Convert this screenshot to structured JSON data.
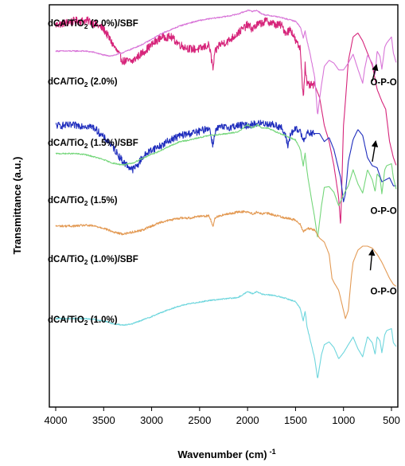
{
  "chart_data": {
    "type": "line",
    "title": "",
    "xlabel": "Wavenumber (cm)",
    "xlabel_superscript": "-1",
    "ylabel": "Transmittance (a.u.)",
    "x_reversed": true,
    "xlim": [
      4000,
      450
    ],
    "y_ticks_shown": false,
    "grid": false,
    "legend": "labels-above-curves",
    "xticks": [
      4000,
      3500,
      3000,
      2500,
      2000,
      1500,
      1000,
      500
    ],
    "xtick_labels": [
      "4000",
      "3500",
      "3000",
      "2500",
      "2000",
      "1500",
      "1000",
      "500"
    ],
    "series": [
      {
        "name_base": "dCA/TiO",
        "name_sub": "2",
        "name_rest": " (2.0%)/SBF",
        "color": "#d6247a",
        "offset": 0,
        "noise": 2.0,
        "x": [
          4000,
          3800,
          3650,
          3500,
          3400,
          3300,
          3200,
          3100,
          3000,
          2900,
          2800,
          2700,
          2600,
          2500,
          2400,
          2360,
          2340,
          2300,
          2200,
          2100,
          2000,
          1950,
          1900,
          1800,
          1700,
          1650,
          1600,
          1550,
          1500,
          1450,
          1420,
          1400,
          1380,
          1300,
          1250,
          1200,
          1150,
          1100,
          1050,
          1030,
          1000,
          980,
          950,
          900,
          850,
          800,
          750,
          700,
          650,
          600,
          560,
          520,
          480,
          450
        ],
        "y": [
          95,
          96,
          96,
          94,
          90,
          86,
          86,
          88,
          90,
          92,
          92,
          90,
          89,
          89,
          90,
          84,
          88,
          90,
          91,
          93,
          95,
          94,
          95,
          96,
          95,
          95,
          93,
          94,
          91,
          89,
          77,
          85,
          80,
          80,
          77,
          70,
          66,
          60,
          52,
          45,
          70,
          76,
          86,
          92,
          93,
          91,
          88,
          85,
          79,
          76,
          74,
          66,
          62,
          60
        ]
      },
      {
        "name_base": "dCA/TiO",
        "name_sub": "2",
        "name_rest": " (2.0%)",
        "color": "#d875d8",
        "offset": 0,
        "noise": 0.3,
        "x": [
          4000,
          3800,
          3700,
          3600,
          3500,
          3450,
          3400,
          3300,
          3200,
          3100,
          3000,
          2900,
          2800,
          2700,
          2600,
          2500,
          2400,
          2200,
          2100,
          2000,
          1950,
          1900,
          1850,
          1800,
          1700,
          1600,
          1500,
          1450,
          1420,
          1400,
          1380,
          1350,
          1300,
          1270,
          1250,
          1230,
          1200,
          1150,
          1100,
          1050,
          1000,
          950,
          900,
          850,
          800,
          780,
          750,
          700,
          670,
          650,
          620,
          600,
          570,
          550,
          500,
          480,
          450
        ],
        "y": [
          88.5,
          88.5,
          88.5,
          88.2,
          87.5,
          87.3,
          87.4,
          88.1,
          89.1,
          90.1,
          91.4,
          92.8,
          93.8,
          94.8,
          95.5,
          96.1,
          96.5,
          97.2,
          97.7,
          98.6,
          98.4,
          98.6,
          97.7,
          97.4,
          97.1,
          96.5,
          95.9,
          94.5,
          91.8,
          93.5,
          91.0,
          88.0,
          82.0,
          72.5,
          76.5,
          80.0,
          84.7,
          86.2,
          85.5,
          83.8,
          83.8,
          85.5,
          87.7,
          84.0,
          80.5,
          84.0,
          87.5,
          85.5,
          82.5,
          88.5,
          87.2,
          84.0,
          89.5,
          90.5,
          92.0,
          88.0,
          85.5
        ]
      },
      {
        "name_base": "dCA/TiO",
        "name_sub": "2",
        "name_rest": " (1.5%)/SBF",
        "color": "#1f2dbd",
        "offset": 0,
        "noise": 1.8,
        "x": [
          4000,
          3800,
          3700,
          3600,
          3500,
          3450,
          3400,
          3300,
          3250,
          3200,
          3150,
          3100,
          3000,
          2900,
          2800,
          2700,
          2600,
          2500,
          2400,
          2360,
          2340,
          2300,
          2200,
          2100,
          2000,
          1900,
          1800,
          1700,
          1650,
          1600,
          1580,
          1550,
          1500,
          1450,
          1420,
          1380,
          1300,
          1250,
          1200,
          1150,
          1100,
          1050,
          1030,
          1000,
          980,
          950,
          900,
          850,
          800,
          750,
          700,
          650,
          600,
          560,
          520,
          480,
          450
        ],
        "y": [
          70,
          70,
          70,
          69.5,
          67,
          66,
          64.5,
          61,
          60,
          59,
          60,
          62,
          64,
          65,
          66.5,
          67.5,
          68,
          68.5,
          69.5,
          65,
          68.5,
          69.5,
          69.5,
          70,
          70,
          70.5,
          70.5,
          70,
          69.5,
          67,
          65,
          68,
          69,
          68.5,
          66.5,
          68,
          68,
          68,
          66,
          67,
          64,
          59,
          57,
          51,
          53,
          61,
          66.5,
          69,
          67.5,
          62,
          60,
          59.5,
          56,
          56.5,
          57,
          55,
          55
        ]
      },
      {
        "name_base": "dCA/TiO",
        "name_sub": "2",
        "name_rest": " (1.5%)",
        "color": "#74d67a",
        "offset": 0,
        "noise": 0.3,
        "x": [
          4000,
          3800,
          3700,
          3600,
          3500,
          3450,
          3400,
          3300,
          3200,
          3100,
          3000,
          2900,
          2800,
          2700,
          2600,
          2500,
          2400,
          2200,
          2100,
          2000,
          1950,
          1900,
          1850,
          1800,
          1700,
          1600,
          1500,
          1450,
          1420,
          1400,
          1380,
          1350,
          1300,
          1270,
          1250,
          1230,
          1200,
          1150,
          1100,
          1050,
          1000,
          950,
          900,
          850,
          800,
          780,
          750,
          700,
          670,
          650,
          620,
          600,
          570,
          550,
          500,
          480,
          450
        ],
        "y": [
          63,
          63,
          62.8,
          62.2,
          61.5,
          61,
          60.6,
          60.2,
          60.6,
          61.8,
          62.8,
          63.8,
          65,
          66,
          66.4,
          67,
          67.5,
          68,
          68.4,
          70.2,
          69.4,
          70.2,
          69.4,
          69.4,
          68.4,
          67.4,
          66.4,
          64,
          60,
          63,
          58.5,
          54,
          47,
          42,
          46,
          50,
          54.6,
          54.8,
          53.4,
          50,
          52.8,
          55,
          59,
          55.5,
          53.2,
          55.5,
          59,
          56.5,
          53.5,
          58,
          57,
          53,
          59,
          60,
          60.5,
          57,
          54
        ]
      },
      {
        "name_base": "dCA/TiO",
        "name_sub": "2",
        "name_rest": " (1.0%)/SBF",
        "color": "#e39a54",
        "offset": 0,
        "noise": 0.55,
        "x": [
          4000,
          3800,
          3700,
          3600,
          3500,
          3450,
          3400,
          3300,
          3200,
          3100,
          3000,
          2900,
          2800,
          2700,
          2600,
          2500,
          2400,
          2360,
          2340,
          2300,
          2200,
          2100,
          2000,
          1950,
          1900,
          1850,
          1800,
          1700,
          1600,
          1500,
          1450,
          1420,
          1380,
          1300,
          1250,
          1200,
          1150,
          1120,
          1100,
          1050,
          1000,
          980,
          950,
          920,
          900,
          850,
          800,
          750,
          700,
          650,
          600,
          560,
          520,
          480,
          450
        ],
        "y": [
          45,
          45,
          45.2,
          45,
          44.5,
          44,
          43.5,
          43,
          43.5,
          44,
          45,
          46,
          46.5,
          47,
          47,
          47.5,
          47.5,
          45,
          47,
          47.5,
          48,
          48.5,
          48.6,
          48,
          48.5,
          48,
          48.2,
          47.6,
          47,
          46.5,
          45.5,
          43.5,
          44.5,
          44,
          42,
          41,
          38,
          32,
          31,
          29,
          24,
          22,
          24,
          32,
          36,
          39,
          40,
          40,
          39.5,
          38,
          36,
          34,
          32,
          30.5,
          30
        ]
      },
      {
        "name_base": "dCA/TiO",
        "name_sub": "2",
        "name_rest": " (1.0%)",
        "color": "#6ed6dd",
        "offset": 0,
        "noise": 0.3,
        "x": [
          4000,
          3800,
          3700,
          3600,
          3500,
          3450,
          3400,
          3300,
          3200,
          3100,
          3000,
          2900,
          2800,
          2700,
          2600,
          2500,
          2400,
          2200,
          2100,
          2000,
          1950,
          1900,
          1850,
          1800,
          1700,
          1600,
          1500,
          1450,
          1420,
          1400,
          1380,
          1350,
          1300,
          1270,
          1250,
          1230,
          1200,
          1150,
          1100,
          1050,
          1000,
          950,
          900,
          850,
          800,
          780,
          750,
          700,
          670,
          650,
          620,
          600,
          570,
          550,
          500,
          480,
          450
        ],
        "y": [
          22,
          22,
          22,
          21.8,
          21.4,
          21.1,
          20.7,
          20.4,
          20.7,
          21.6,
          22.5,
          23.5,
          24.4,
          25.2,
          25.7,
          26.1,
          26.5,
          27,
          27.2,
          28.7,
          28.2,
          28.7,
          28,
          28,
          27.6,
          27,
          26.2,
          24.5,
          21.5,
          23.8,
          20,
          17,
          12,
          7,
          10,
          13,
          15.5,
          16.2,
          14.8,
          12,
          13.5,
          15.5,
          17.4,
          14.5,
          12.5,
          14.5,
          17.5,
          16,
          13,
          17.5,
          16.5,
          13.5,
          18,
          19,
          19.5,
          16,
          15
        ]
      }
    ],
    "annotations": [
      {
        "text": "O-P-O",
        "x": 720,
        "y": 80,
        "arrow_from": [
          700,
          81
        ],
        "arrow_to": [
          658,
          85
        ]
      },
      {
        "text": "O-P-O",
        "x": 720,
        "y": 48,
        "arrow_from": [
          700,
          61
        ],
        "arrow_to": [
          665,
          66
        ]
      },
      {
        "text": "O-P-O",
        "x": 720,
        "y": 28,
        "arrow_from": [
          720,
          34
        ],
        "arrow_to": [
          700,
          39
        ]
      }
    ]
  }
}
